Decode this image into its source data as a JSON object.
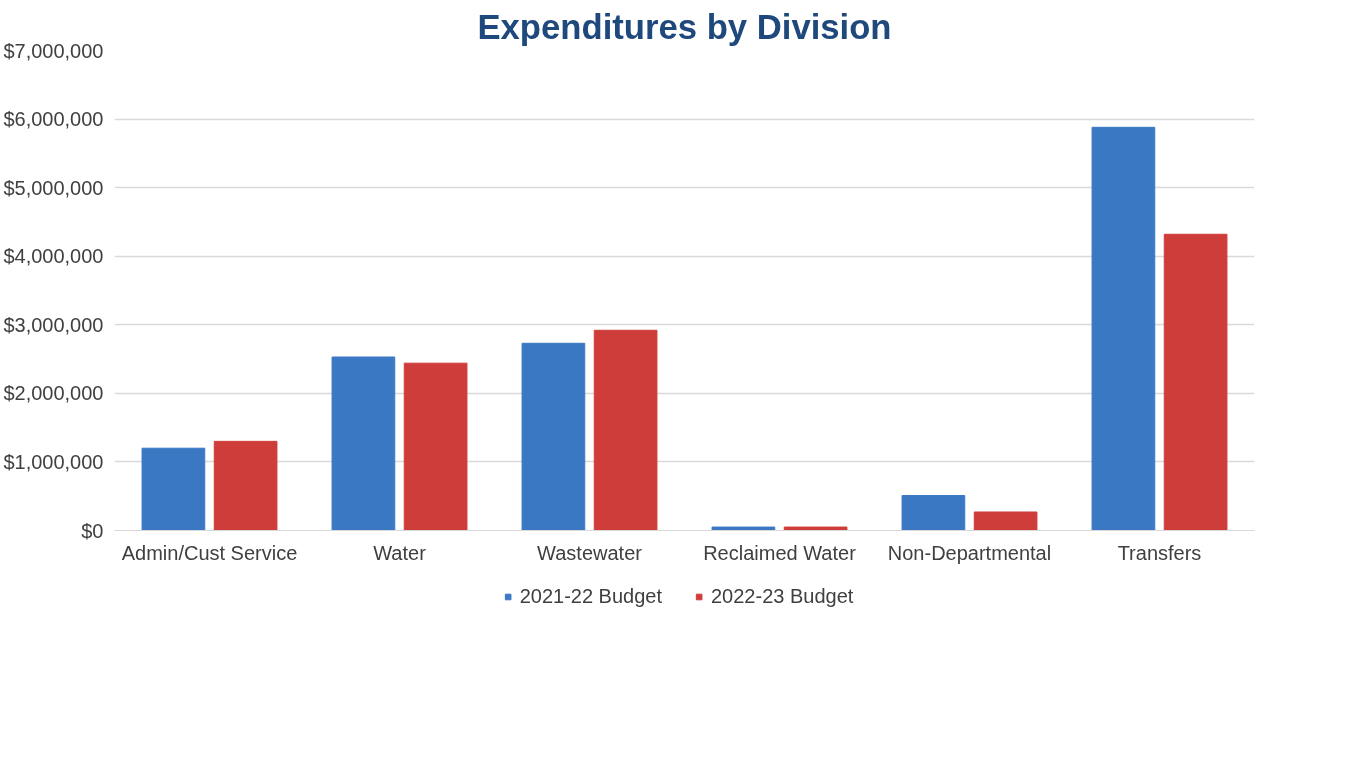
{
  "chart_data": {
    "type": "bar",
    "title": "Expenditures by Division",
    "categories": [
      "Admin/Cust Service",
      "Water",
      "Wastewater",
      "Reclaimed Water",
      "Non-Departmental",
      "Transfers"
    ],
    "series": [
      {
        "name": "2021-22 Budget",
        "color": "#3b78c4",
        "values": [
          1200000,
          2530000,
          2730000,
          50000,
          510000,
          5880000
        ]
      },
      {
        "name": "2022-23 Budget",
        "color": "#cf3d3b",
        "values": [
          1300000,
          2440000,
          2920000,
          50000,
          270000,
          4320000
        ]
      }
    ],
    "ylim": [
      0,
      7000000
    ],
    "yticks": [
      {
        "value": 0,
        "label": "$0"
      },
      {
        "value": 1000000,
        "label": "$1,000,000"
      },
      {
        "value": 2000000,
        "label": "$2,000,000"
      },
      {
        "value": 3000000,
        "label": "$3,000,000"
      },
      {
        "value": 4000000,
        "label": "$4,000,000"
      },
      {
        "value": 5000000,
        "label": "$5,000,000"
      },
      {
        "value": 6000000,
        "label": "$6,000,000"
      },
      {
        "value": 7000000,
        "label": "$7,000,000"
      }
    ],
    "grid": "y",
    "legend": "bottom"
  }
}
